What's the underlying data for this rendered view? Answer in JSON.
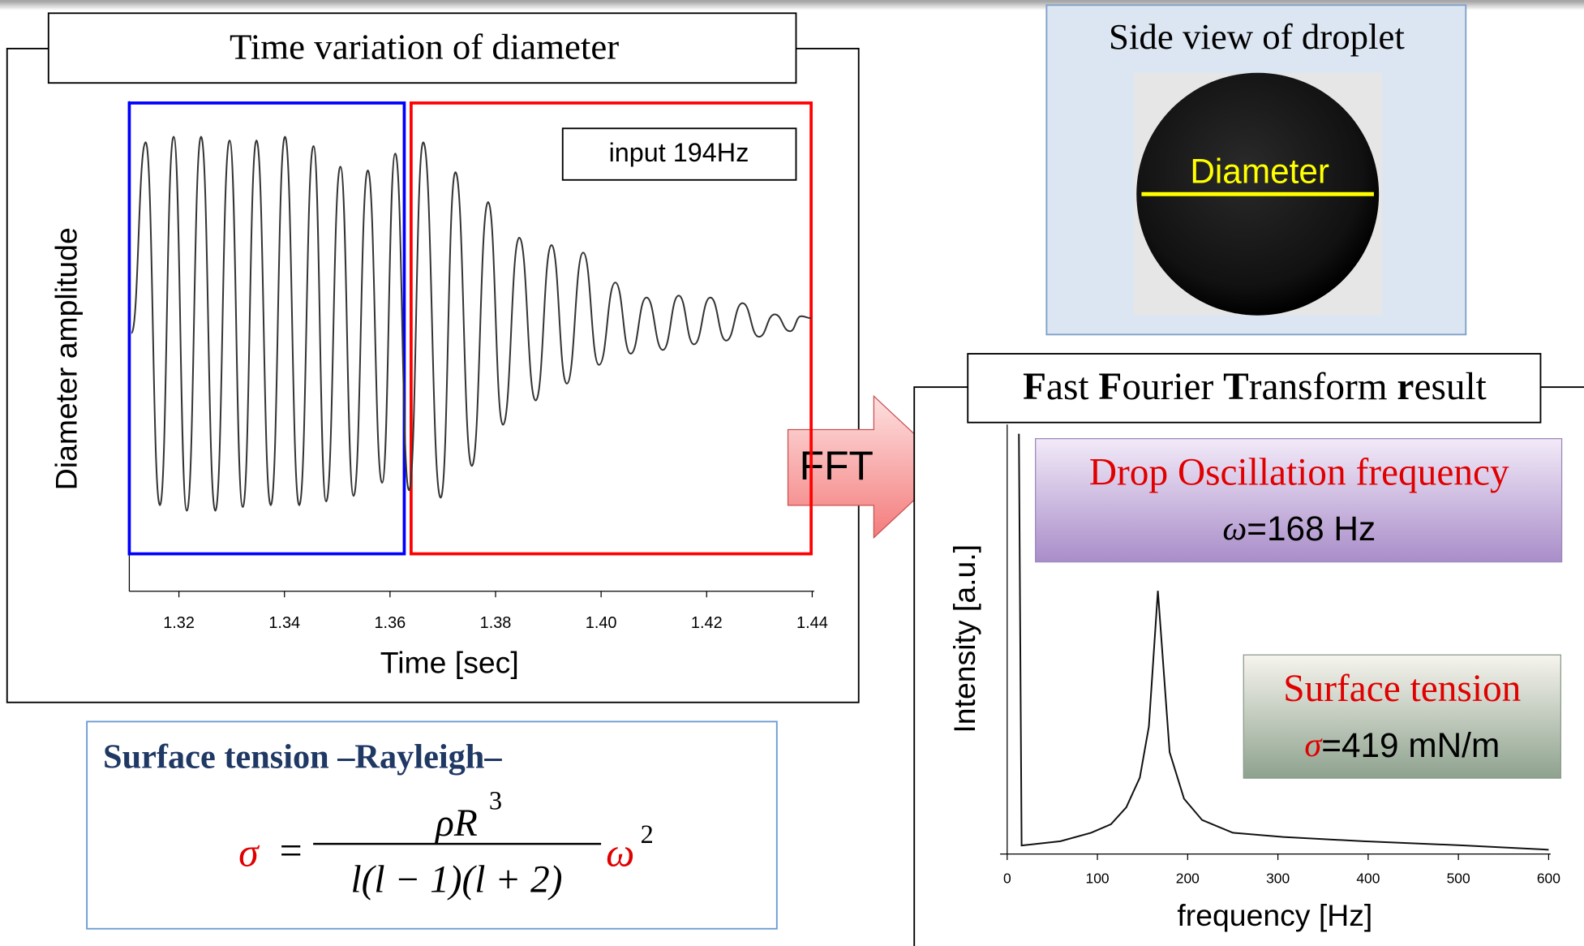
{
  "chart_data": [
    {
      "type": "line",
      "title": "Time variation of  diameter",
      "x_label": "Time [sec]",
      "y_label": "Diameter  amplitude",
      "annotation": "input 194Hz",
      "xlim": [
        1.3106,
        1.44
      ],
      "ylim": [
        -1.43,
        1.19
      ],
      "xticks": [
        1.32,
        1.34,
        1.36,
        1.38,
        {
          "value": 1.4,
          "label": "1.40"
        },
        1.42,
        1.44
      ],
      "regions": [
        {
          "xlim": [
            1.3106,
            1.3627
          ],
          "ylim": [
            -1.23,
            1.18
          ],
          "color": "#0000ff"
        },
        {
          "xlim": [
            1.364,
            1.4398
          ],
          "ylim": [
            -1.23,
            1.18
          ],
          "color": "#ff0000"
        }
      ],
      "color": "#333333",
      "x": [
        1.311,
        1.3137,
        1.3164,
        1.319,
        1.3215,
        1.3242,
        1.3269,
        1.3296,
        1.3321,
        1.3347,
        1.3374,
        1.3401,
        1.3428,
        1.3455,
        1.3479,
        1.3506,
        1.3531,
        1.3558,
        1.3585,
        1.361,
        1.3636,
        1.3663,
        1.3696,
        1.3724,
        1.3755,
        1.3786,
        1.3814,
        1.3845,
        1.3876,
        1.3906,
        1.3935,
        1.3966,
        1.3996,
        1.4027,
        1.4056,
        1.4086,
        1.4117,
        1.4147,
        1.4176,
        1.4207,
        1.4237,
        1.4268,
        1.4299,
        1.4329,
        1.4358,
        1.4379,
        1.4398
      ],
      "values": [
        -0.05,
        0.97,
        -0.97,
        1.0,
        -1.0,
        1.0,
        -1.0,
        0.98,
        -0.98,
        0.98,
        -0.97,
        1.0,
        -0.97,
        0.95,
        -0.95,
        0.84,
        -0.92,
        0.82,
        -0.85,
        0.91,
        -0.89,
        0.97,
        -0.93,
        0.81,
        -0.76,
        0.65,
        -0.54,
        0.46,
        -0.41,
        0.42,
        -0.32,
        0.38,
        -0.22,
        0.22,
        -0.16,
        0.14,
        -0.14,
        0.15,
        -0.11,
        0.14,
        -0.09,
        0.11,
        -0.07,
        0.05,
        -0.04,
        0.04,
        0.03
      ]
    },
    {
      "type": "line",
      "title": "Fast Fourier Transform result",
      "x_label": "frequency [Hz]",
      "y_label": "Intensity [a.u.]",
      "xlim": [
        0,
        600
      ],
      "ylim": [
        0,
        1
      ],
      "xticks": [
        0,
        100,
        200,
        300,
        400,
        500,
        600
      ],
      "color": "#111111",
      "x": [
        13,
        16,
        59,
        93,
        115,
        132,
        147,
        157,
        167,
        180,
        196,
        216,
        250,
        306,
        395,
        507,
        600
      ],
      "values": [
        0.99,
        0.02,
        0.03,
        0.05,
        0.07,
        0.11,
        0.18,
        0.3,
        0.62,
        0.24,
        0.13,
        0.08,
        0.05,
        0.04,
        0.03,
        0.02,
        0.01
      ]
    }
  ],
  "droplet": {
    "title": "Side view of droplet",
    "label": "Diameter"
  },
  "arrow": "FFT",
  "frequency_box": {
    "title": "Drop Oscillation frequency",
    "symbol": "ω",
    "rest": "=168 Hz"
  },
  "tension_box": {
    "title": "Surface tension",
    "symbol": "σ",
    "rest": "=419 mN/m"
  },
  "formula": {
    "title": "Surface tension –Rayleigh–",
    "lhs": "σ",
    "equals": "=",
    "numerator": "ρR",
    "numerator_exponent": "3",
    "denominator": "l(l − 1)(l + 2)",
    "factor": "ω",
    "factor_exponent": "2"
  }
}
